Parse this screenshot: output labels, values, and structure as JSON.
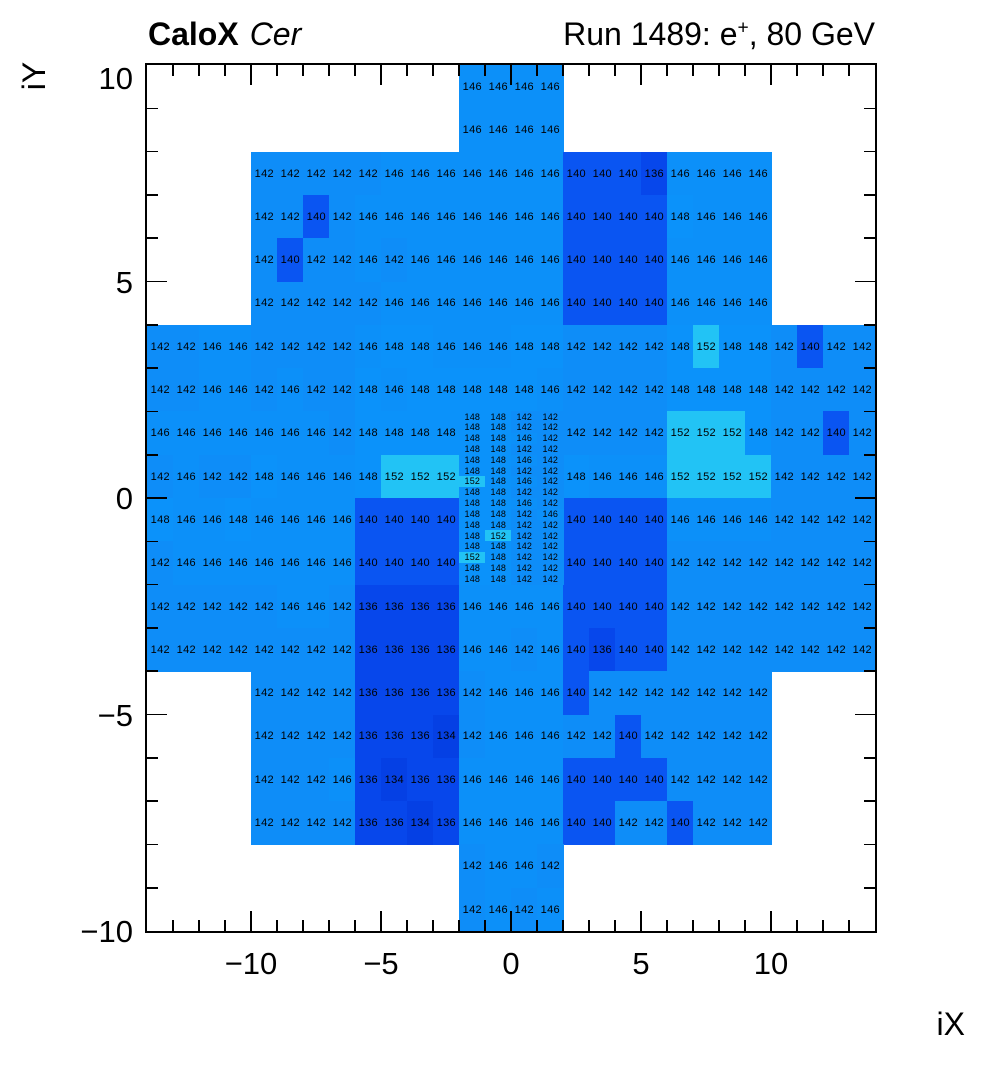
{
  "header": {
    "left_bold": "CaloX",
    "left_italic": "Cer",
    "right_prefix": "Run 1489: e",
    "right_sup": "+",
    "right_suffix": ", 80 GeV"
  },
  "chart_data": {
    "type": "heatmap",
    "title": "CaloX Cer",
    "subtitle": "Run 1489: e+, 80 GeV",
    "xlabel": "iX",
    "ylabel": "iY",
    "x_range": [
      -14,
      14
    ],
    "y_range": [
      -10,
      10
    ],
    "grid": false,
    "x_ticks": [
      {
        "v": -10,
        "label": "−10"
      },
      {
        "v": -5,
        "label": "−5"
      },
      {
        "v": 0,
        "label": "0"
      },
      {
        "v": 5,
        "label": "5"
      },
      {
        "v": 10,
        "label": "10"
      }
    ],
    "y_ticks": [
      {
        "v": 10,
        "label": "10"
      },
      {
        "v": 5,
        "label": "5"
      },
      {
        "v": 0,
        "label": "0"
      },
      {
        "v": -5,
        "label": "−5"
      },
      {
        "v": -10,
        "label": "−10"
      }
    ],
    "value_colors": {
      "134": "#0540E4",
      "136": "#0747EB",
      "140": "#0A55F2",
      "142": "#0E8DF8",
      "146": "#0C90F9",
      "148": "#0B92FA",
      "152": "#22C3F5"
    },
    "rows": [
      {
        "iy": 9,
        "x0": -2,
        "v": [
          146,
          146,
          146,
          146
        ]
      },
      {
        "iy": 8,
        "x0": -2,
        "v": [
          146,
          146,
          146,
          146
        ]
      },
      {
        "iy": 7,
        "x0": -10,
        "v": [
          142,
          142,
          142,
          142,
          142,
          146,
          146,
          146,
          146,
          146,
          146,
          146,
          140,
          140,
          140,
          136,
          146,
          146,
          146,
          146
        ]
      },
      {
        "iy": 6,
        "x0": -10,
        "v": [
          142,
          142,
          140,
          142,
          146,
          146,
          146,
          146,
          146,
          146,
          146,
          146,
          140,
          140,
          140,
          140,
          148,
          146,
          146,
          146
        ]
      },
      {
        "iy": 5,
        "x0": -10,
        "v": [
          142,
          140,
          142,
          142,
          146,
          142,
          146,
          146,
          146,
          146,
          146,
          146,
          140,
          140,
          140,
          140,
          146,
          146,
          146,
          146
        ]
      },
      {
        "iy": 4,
        "x0": -10,
        "v": [
          142,
          142,
          142,
          142,
          142,
          146,
          146,
          146,
          146,
          146,
          146,
          146,
          140,
          140,
          140,
          140,
          146,
          146,
          146,
          146
        ]
      },
      {
        "iy": 3,
        "x0": -14,
        "v": [
          142,
          142,
          146,
          146,
          142,
          142,
          142,
          142,
          146,
          148,
          148,
          146,
          146,
          146,
          148,
          148,
          142,
          142,
          142,
          142,
          148,
          152,
          148,
          148,
          142,
          140,
          142,
          142
        ]
      },
      {
        "iy": 2,
        "x0": -14,
        "v": [
          142,
          142,
          146,
          146,
          142,
          146,
          142,
          142,
          148,
          146,
          148,
          148,
          148,
          148,
          148,
          146,
          142,
          142,
          142,
          142,
          148,
          148,
          148,
          148,
          142,
          142,
          142,
          142
        ]
      },
      {
        "iy": 1,
        "x0": -14,
        "v": [
          146,
          146,
          146,
          146,
          146,
          146,
          146,
          142,
          148,
          148,
          148,
          148
        ]
      },
      {
        "iy": 1,
        "x0": 2,
        "v": [
          142,
          142,
          142,
          142,
          152,
          152,
          152,
          148,
          142,
          142,
          140,
          142
        ]
      },
      {
        "iy": 0,
        "x0": -14,
        "v": [
          142,
          146,
          142,
          142,
          148,
          146,
          146,
          146,
          148,
          152,
          152,
          152
        ]
      },
      {
        "iy": 0,
        "x0": 2,
        "v": [
          148,
          146,
          146,
          146,
          152,
          152,
          152,
          152,
          142,
          142,
          142,
          142
        ]
      },
      {
        "iy": -1,
        "x0": -14,
        "v": [
          148,
          146,
          146,
          148,
          146,
          146,
          146,
          146,
          140,
          140,
          140,
          140
        ]
      },
      {
        "iy": -1,
        "x0": 2,
        "v": [
          140,
          140,
          140,
          140,
          146,
          146,
          146,
          146,
          142,
          142,
          142,
          142
        ]
      },
      {
        "iy": -2,
        "x0": -14,
        "v": [
          142,
          146,
          146,
          146,
          146,
          146,
          146,
          146,
          140,
          140,
          140,
          140
        ]
      },
      {
        "iy": -2,
        "x0": 2,
        "v": [
          140,
          140,
          140,
          140,
          142,
          142,
          142,
          142,
          142,
          142,
          142,
          142
        ]
      },
      {
        "iy": -3,
        "x0": -14,
        "v": [
          142,
          142,
          142,
          142,
          142,
          146,
          146,
          142,
          136,
          136,
          136,
          136,
          146,
          146,
          146,
          146,
          140,
          140,
          140,
          140,
          142,
          142,
          142,
          142,
          142,
          142,
          142,
          142
        ]
      },
      {
        "iy": -4,
        "x0": -14,
        "v": [
          142,
          142,
          142,
          142,
          142,
          142,
          142,
          142,
          136,
          136,
          136,
          136,
          146,
          146,
          142,
          146,
          140,
          136,
          140,
          140,
          142,
          142,
          142,
          142,
          142,
          142,
          142,
          142
        ]
      },
      {
        "iy": -5,
        "x0": -10,
        "v": [
          142,
          142,
          142,
          142,
          136,
          136,
          136,
          136,
          142,
          146,
          146,
          146,
          140,
          142,
          142,
          142,
          142,
          142,
          142,
          142
        ]
      },
      {
        "iy": -6,
        "x0": -10,
        "v": [
          142,
          142,
          142,
          142,
          136,
          136,
          136,
          134,
          142,
          146,
          146,
          146,
          142,
          142,
          140,
          142,
          142,
          142,
          142,
          142
        ]
      },
      {
        "iy": -7,
        "x0": -10,
        "v": [
          142,
          142,
          142,
          146,
          136,
          134,
          136,
          136,
          146,
          146,
          146,
          146,
          140,
          140,
          140,
          140,
          142,
          142,
          142,
          142
        ]
      },
      {
        "iy": -8,
        "x0": -10,
        "v": [
          142,
          142,
          142,
          142,
          136,
          136,
          134,
          136,
          146,
          146,
          146,
          146,
          140,
          140,
          142,
          142,
          140,
          142,
          142,
          142
        ]
      },
      {
        "iy": -9,
        "x0": -2,
        "v": [
          142,
          146,
          146,
          142
        ]
      },
      {
        "iy": -10,
        "x0": -2,
        "v": [
          142,
          146,
          142,
          146
        ]
      }
    ],
    "fine_region": {
      "x0": -2,
      "cols": 4,
      "y_top": 2,
      "y_bottom": -2,
      "rows": [
        [
          148,
          148,
          142,
          142
        ],
        [
          148,
          148,
          142,
          142
        ],
        [
          148,
          148,
          146,
          142
        ],
        [
          148,
          148,
          142,
          142
        ],
        [
          148,
          148,
          146,
          142
        ],
        [
          148,
          148,
          142,
          142
        ],
        [
          152,
          148,
          146,
          142
        ],
        [
          148,
          148,
          142,
          142
        ],
        [
          148,
          148,
          146,
          142
        ],
        [
          148,
          148,
          142,
          146
        ],
        [
          148,
          148,
          142,
          142
        ],
        [
          148,
          152,
          142,
          142
        ],
        [
          148,
          148,
          142,
          142
        ],
        [
          152,
          148,
          142,
          142
        ],
        [
          148,
          148,
          142,
          142
        ],
        [
          148,
          148,
          142,
          142
        ]
      ]
    }
  }
}
